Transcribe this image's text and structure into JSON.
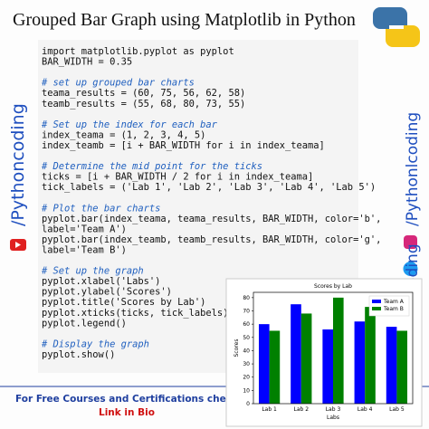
{
  "header": {
    "title": "Grouped Bar Graph using Matplotlib in Python"
  },
  "code": {
    "blocks": [
      [
        "import matplotlib.pyplot as pyplot",
        "BAR_WIDTH = 0.35"
      ],
      [
        "# set up grouped bar charts",
        "teama_results = (60, 75, 56, 62, 58)",
        "teamb_results = (55, 68, 80, 73, 55)"
      ],
      [
        "# Set up the index for each bar",
        "index_teama = (1, 2, 3, 4, 5)",
        "index_teamb = [i + BAR_WIDTH for i in index_teama]"
      ],
      [
        "# Determine the mid point for the ticks",
        "ticks = [i + BAR_WIDTH / 2 for i in index_teama]",
        "tick_labels = ('Lab 1', 'Lab 2', 'Lab 3', 'Lab 4', 'Lab 5')"
      ],
      [
        "# Plot the bar charts",
        "pyplot.bar(index_teama, teama_results, BAR_WIDTH, color='b',",
        "label='Team A')",
        "pyplot.bar(index_teamb, teamb_results, BAR_WIDTH, color='g',",
        "label='Team B')"
      ],
      [
        "# Set up the graph",
        "pyplot.xlabel('Labs')",
        "pyplot.ylabel('Scores')",
        "pyplot.title('Scores by Lab')",
        "pyplot.xticks(ticks, tick_labels)",
        "pyplot.legend()"
      ],
      [
        "# Display the graph",
        "pyplot.show()"
      ]
    ]
  },
  "side": {
    "left": "/Pythoncoding",
    "right": "/Pythonlcoding",
    "right2": "/clcoding"
  },
  "footer": {
    "line1": "For Free Courses and Certifications check",
    "line2": "Link in Bio"
  },
  "chart_data": {
    "type": "bar",
    "title": "Scores by Lab",
    "x_label": "Labs",
    "y_label": "Scores",
    "categories": [
      "Lab 1",
      "Lab 2",
      "Lab 3",
      "Lab 4",
      "Lab 5"
    ],
    "series": [
      {
        "name": "Team A",
        "color": "#0000ff",
        "values": [
          60,
          75,
          56,
          62,
          58
        ]
      },
      {
        "name": "Team B",
        "color": "#008000",
        "values": [
          55,
          68,
          80,
          73,
          55
        ]
      }
    ],
    "ylim": [
      0,
      84
    ],
    "yticks": [
      0,
      10,
      20,
      30,
      40,
      50,
      60,
      70,
      80
    ],
    "legend": "upper right"
  }
}
